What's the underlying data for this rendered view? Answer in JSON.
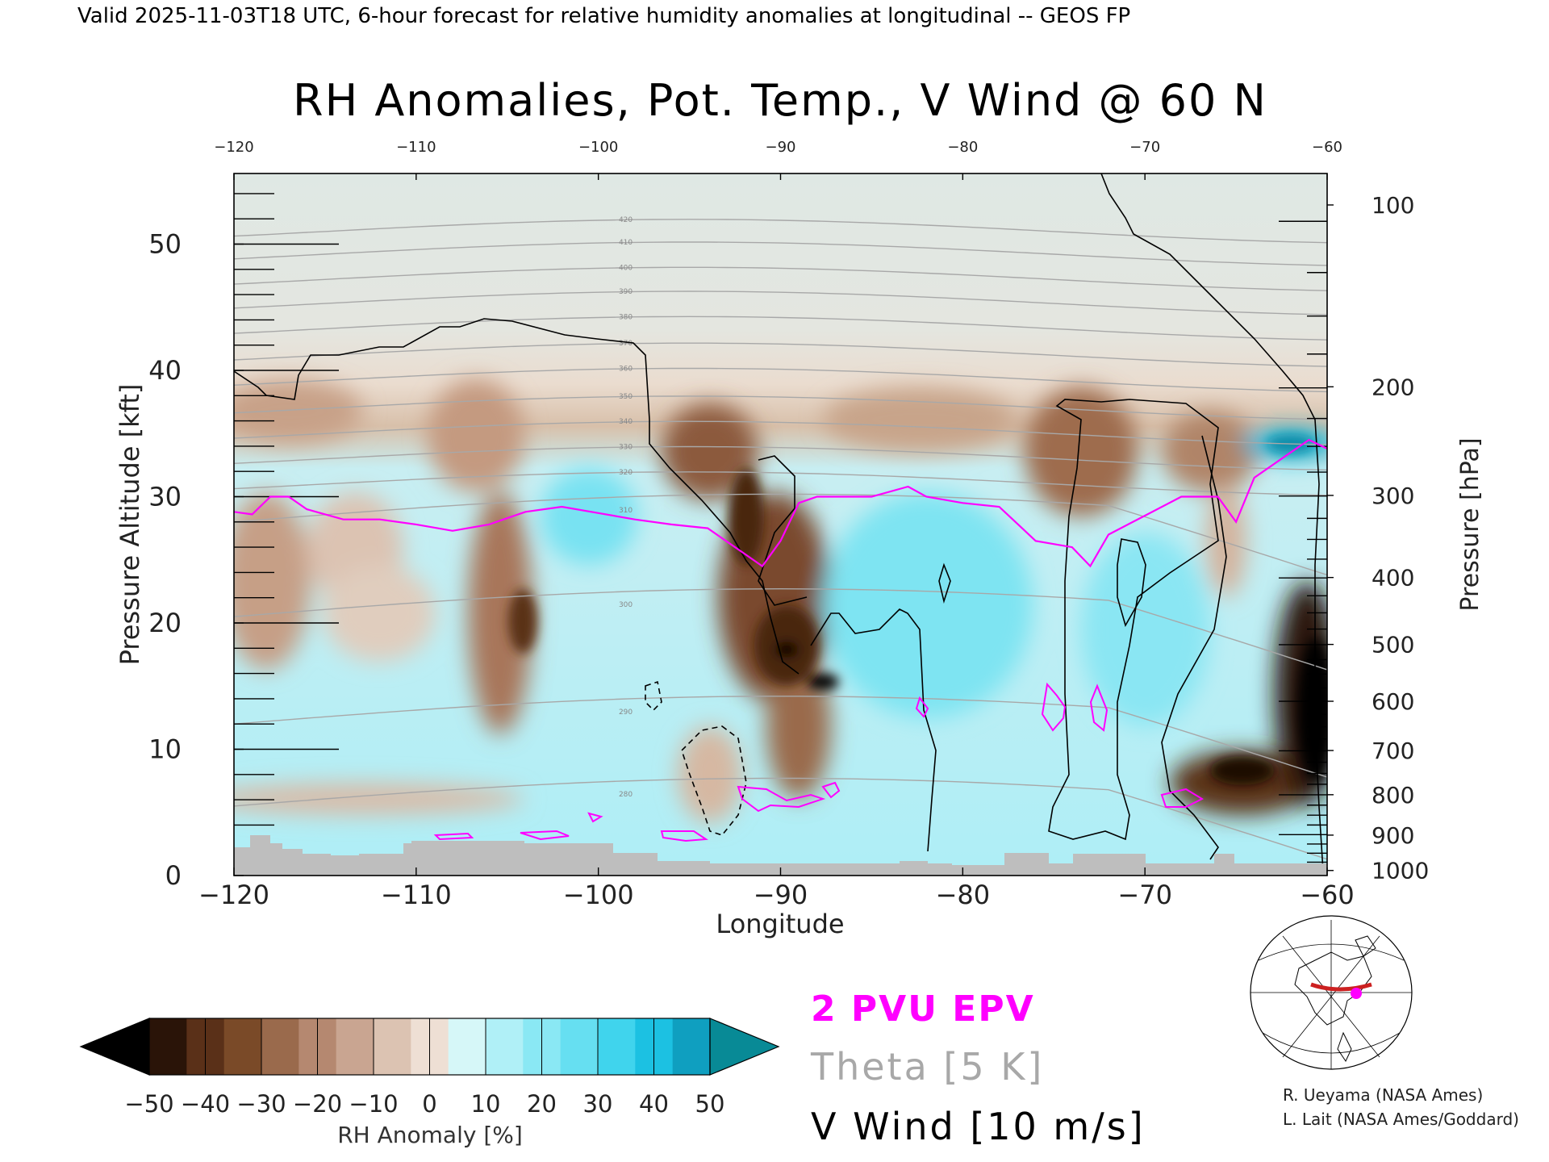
{
  "header": "Valid 2025-11-03T18 UTC, 6-hour forecast for relative humidity anomalies at longitudinal -- GEOS FP",
  "chart_data": {
    "type": "heatmap",
    "title": "RH Anomalies, Pot. Temp., V Wind @ 60 N",
    "xlabel": "Longitude",
    "ylabel": "Pressure Altitude [kft]",
    "y2label": "Pressure [hPa]",
    "xlim": [
      -120,
      -60
    ],
    "ylim": [
      0,
      55
    ],
    "x_ticks": [
      -120,
      -110,
      -100,
      -90,
      -80,
      -70,
      -60
    ],
    "y_ticks": [
      0,
      10,
      20,
      30,
      40,
      50
    ],
    "pressure_ticks": [
      {
        "hPa": 100,
        "kft": 53.1
      },
      {
        "hPa": 200,
        "kft": 38.7
      },
      {
        "hPa": 300,
        "kft": 30.1
      },
      {
        "hPa": 400,
        "kft": 23.6
      },
      {
        "hPa": 500,
        "kft": 18.3
      },
      {
        "hPa": 600,
        "kft": 13.8
      },
      {
        "hPa": 700,
        "kft": 9.9
      },
      {
        "hPa": 800,
        "kft": 6.4
      },
      {
        "hPa": 900,
        "kft": 3.2
      },
      {
        "hPa": 1000,
        "kft": 0.4
      }
    ],
    "colorbar": {
      "label": "RH Anomaly [%]",
      "ticks": [
        -50,
        -40,
        -30,
        -20,
        -10,
        0,
        10,
        20,
        30,
        40,
        50
      ],
      "colors": [
        "#000000",
        "#4a2810",
        "#7a4a28",
        "#a06c4c",
        "#c19276",
        "#dcbba6",
        "#eedfd4",
        "#d6f7f8",
        "#a8eef6",
        "#74e3f3",
        "#3fd3ec",
        "#10a8cc",
        "#088a96"
      ],
      "extend": "both"
    },
    "theta_contours": [
      280,
      290,
      300,
      310,
      320,
      330,
      340,
      350,
      360,
      370,
      380,
      390,
      400,
      410,
      420
    ],
    "epv_2pvu_kft": [
      {
        "x": -120,
        "y": 28.8
      },
      {
        "x": -119,
        "y": 28.6
      },
      {
        "x": -118,
        "y": 30
      },
      {
        "x": -117,
        "y": 30
      },
      {
        "x": -116,
        "y": 29
      },
      {
        "x": -114,
        "y": 28.2
      },
      {
        "x": -112,
        "y": 28.2
      },
      {
        "x": -110,
        "y": 27.8
      },
      {
        "x": -108,
        "y": 27.3
      },
      {
        "x": -106,
        "y": 27.8
      },
      {
        "x": -104,
        "y": 28.8
      },
      {
        "x": -102,
        "y": 29.2
      },
      {
        "x": -100,
        "y": 28.7
      },
      {
        "x": -98,
        "y": 28.2
      },
      {
        "x": -96,
        "y": 27.8
      },
      {
        "x": -94,
        "y": 27.5
      },
      {
        "x": -93,
        "y": 26.5
      },
      {
        "x": -92,
        "y": 25.5
      },
      {
        "x": -91,
        "y": 24.5
      },
      {
        "x": -90,
        "y": 26.5
      },
      {
        "x": -89,
        "y": 29.5
      },
      {
        "x": -88,
        "y": 30
      },
      {
        "x": -85,
        "y": 30
      },
      {
        "x": -83,
        "y": 30.8
      },
      {
        "x": -82,
        "y": 30
      },
      {
        "x": -80,
        "y": 29.5
      },
      {
        "x": -78,
        "y": 29.2
      },
      {
        "x": -76,
        "y": 26.5
      },
      {
        "x": -74,
        "y": 26
      },
      {
        "x": -73,
        "y": 24.5
      },
      {
        "x": -72,
        "y": 27
      },
      {
        "x": -70,
        "y": 28.5
      },
      {
        "x": -68,
        "y": 30
      },
      {
        "x": -66,
        "y": 30
      },
      {
        "x": -65,
        "y": 28
      },
      {
        "x": -64,
        "y": 31.5
      },
      {
        "x": -62,
        "y": 33.5
      },
      {
        "x": -61,
        "y": 34.5
      },
      {
        "x": -60,
        "y": 33.8
      }
    ],
    "legend": [
      {
        "label": "2 PVU EPV",
        "color": "#ff00ff"
      },
      {
        "label": "Theta [5 K]",
        "color": "#a8a8a8"
      },
      {
        "label": "V Wind [10 m/s]",
        "color": "#000000"
      }
    ],
    "terrain_color": "#bebebe"
  },
  "credits": [
    "R. Ueyama (NASA Ames)",
    "L. Lait (NASA Ames/Goddard)"
  ]
}
